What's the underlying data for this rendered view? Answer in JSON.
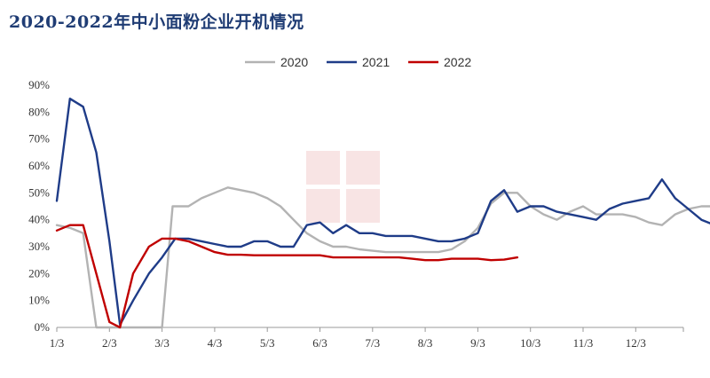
{
  "chart_data": {
    "type": "line",
    "title": "2020-2022年中小面粉企业开机情况",
    "xlabel": "",
    "ylabel": "",
    "x_ticks": [
      "1/3",
      "2/3",
      "3/3",
      "4/3",
      "5/3",
      "6/3",
      "7/3",
      "8/3",
      "9/3",
      "10/3",
      "11/3",
      "12/3"
    ],
    "y_ticks": [
      "0%",
      "10%",
      "20%",
      "30%",
      "40%",
      "50%",
      "60%",
      "70%",
      "80%",
      "90%"
    ],
    "ylim": [
      0,
      90
    ],
    "x_range_months": [
      0,
      12
    ],
    "legend_position": "top-center",
    "grid": false,
    "series": [
      {
        "name": "2020",
        "color": "#b3b3b3",
        "points": [
          [
            0.0,
            38
          ],
          [
            0.25,
            37
          ],
          [
            0.5,
            35
          ],
          [
            0.75,
            0
          ],
          [
            1.0,
            0
          ],
          [
            1.25,
            0
          ],
          [
            1.5,
            0
          ],
          [
            1.75,
            0
          ],
          [
            2.0,
            0
          ],
          [
            2.2,
            45
          ],
          [
            2.5,
            45
          ],
          [
            2.75,
            48
          ],
          [
            3.0,
            50
          ],
          [
            3.25,
            52
          ],
          [
            3.5,
            51
          ],
          [
            3.75,
            50
          ],
          [
            4.0,
            48
          ],
          [
            4.25,
            45
          ],
          [
            4.5,
            40
          ],
          [
            4.75,
            35
          ],
          [
            5.0,
            32
          ],
          [
            5.25,
            30
          ],
          [
            5.5,
            30
          ],
          [
            5.75,
            29
          ],
          [
            6.0,
            28.5
          ],
          [
            6.25,
            28
          ],
          [
            6.5,
            28
          ],
          [
            6.75,
            28
          ],
          [
            7.0,
            28
          ],
          [
            7.25,
            28
          ],
          [
            7.5,
            29
          ],
          [
            7.75,
            32
          ],
          [
            8.0,
            37
          ],
          [
            8.25,
            46
          ],
          [
            8.5,
            50
          ],
          [
            8.75,
            50
          ],
          [
            9.0,
            45
          ],
          [
            9.25,
            42
          ],
          [
            9.5,
            40
          ],
          [
            9.75,
            43
          ],
          [
            10.0,
            45
          ],
          [
            10.25,
            42
          ],
          [
            10.5,
            42
          ],
          [
            10.75,
            42
          ],
          [
            11.0,
            41
          ],
          [
            11.25,
            39
          ],
          [
            11.5,
            38
          ],
          [
            11.75,
            42
          ],
          [
            12.0,
            44
          ],
          [
            12.25,
            45
          ],
          [
            12.5,
            45
          ],
          [
            12.75,
            46
          ],
          [
            12.95,
            46
          ]
        ]
      },
      {
        "name": "2021",
        "color": "#1f3c88",
        "points": [
          [
            0.0,
            47
          ],
          [
            0.25,
            85
          ],
          [
            0.5,
            82
          ],
          [
            0.75,
            65
          ],
          [
            1.0,
            32
          ],
          [
            1.2,
            1
          ],
          [
            1.45,
            10
          ],
          [
            1.75,
            20
          ],
          [
            2.0,
            26
          ],
          [
            2.25,
            33
          ],
          [
            2.5,
            33
          ],
          [
            2.75,
            32
          ],
          [
            3.0,
            31
          ],
          [
            3.25,
            30
          ],
          [
            3.5,
            30
          ],
          [
            3.75,
            32
          ],
          [
            4.0,
            32
          ],
          [
            4.25,
            30
          ],
          [
            4.5,
            30
          ],
          [
            4.75,
            38
          ],
          [
            5.0,
            39
          ],
          [
            5.25,
            35
          ],
          [
            5.5,
            38
          ],
          [
            5.75,
            35
          ],
          [
            6.0,
            35
          ],
          [
            6.25,
            34
          ],
          [
            6.5,
            34
          ],
          [
            6.75,
            34
          ],
          [
            7.0,
            33
          ],
          [
            7.25,
            32
          ],
          [
            7.5,
            32
          ],
          [
            7.75,
            33
          ],
          [
            8.0,
            35
          ],
          [
            8.25,
            47
          ],
          [
            8.5,
            51
          ],
          [
            8.75,
            43
          ],
          [
            9.0,
            45
          ],
          [
            9.25,
            45
          ],
          [
            9.5,
            43
          ],
          [
            9.75,
            42
          ],
          [
            10.0,
            41
          ],
          [
            10.25,
            40
          ],
          [
            10.5,
            44
          ],
          [
            10.75,
            46
          ],
          [
            11.0,
            47
          ],
          [
            11.25,
            48
          ],
          [
            11.5,
            55
          ],
          [
            11.75,
            48
          ],
          [
            12.0,
            44
          ],
          [
            12.25,
            40
          ],
          [
            12.5,
            38
          ],
          [
            12.75,
            35
          ],
          [
            12.95,
            36
          ]
        ]
      },
      {
        "name": "2022",
        "color": "#c00000",
        "points": [
          [
            0.0,
            36
          ],
          [
            0.25,
            38
          ],
          [
            0.5,
            38
          ],
          [
            0.75,
            20
          ],
          [
            1.0,
            2
          ],
          [
            1.2,
            0
          ],
          [
            1.45,
            20
          ],
          [
            1.75,
            30
          ],
          [
            2.0,
            33
          ],
          [
            2.25,
            33
          ],
          [
            2.5,
            32
          ],
          [
            2.75,
            30
          ],
          [
            3.0,
            28
          ],
          [
            3.25,
            27
          ],
          [
            3.5,
            27
          ],
          [
            3.75,
            26.8
          ],
          [
            4.0,
            26.8
          ],
          [
            4.25,
            26.8
          ],
          [
            4.5,
            26.8
          ],
          [
            4.75,
            26.8
          ],
          [
            5.0,
            26.8
          ],
          [
            5.25,
            26
          ],
          [
            5.5,
            26
          ],
          [
            5.75,
            26
          ],
          [
            6.0,
            26
          ],
          [
            6.25,
            26
          ],
          [
            6.5,
            26
          ],
          [
            6.75,
            25.5
          ],
          [
            7.0,
            25
          ],
          [
            7.25,
            25
          ],
          [
            7.5,
            25.5
          ],
          [
            7.75,
            25.5
          ],
          [
            8.0,
            25.5
          ],
          [
            8.25,
            25
          ],
          [
            8.5,
            25.2
          ],
          [
            8.75,
            26
          ]
        ]
      }
    ]
  }
}
